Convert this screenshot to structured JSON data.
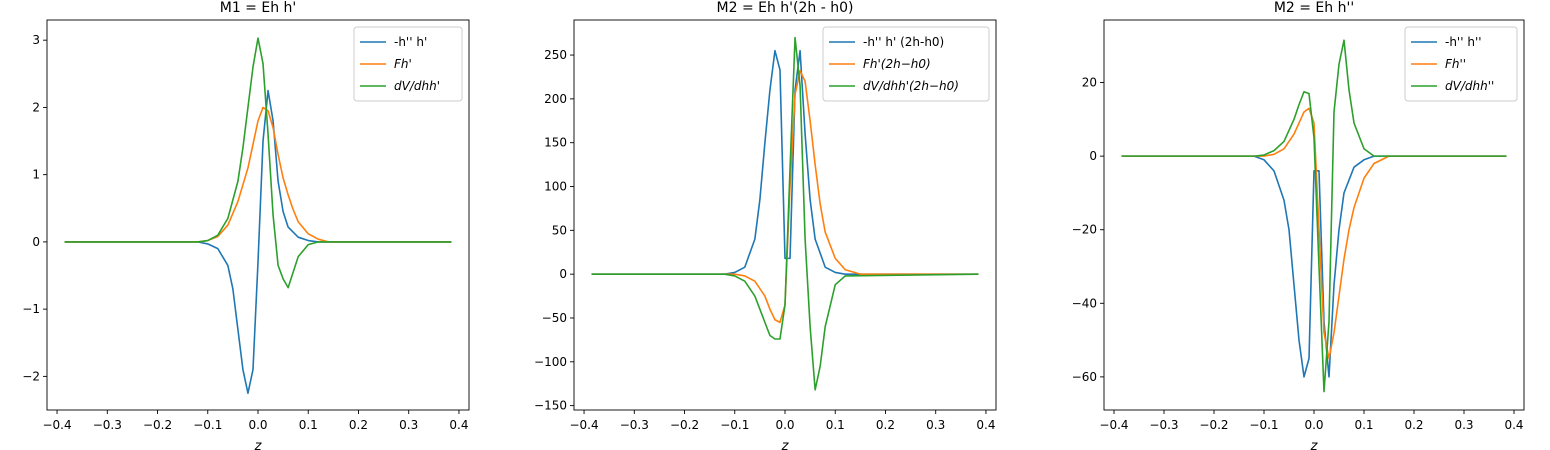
{
  "chart_data": [
    {
      "type": "line",
      "title": "M1 = Eh h'",
      "xlabel": "z",
      "ylabel": "",
      "xlim": [
        -0.42,
        0.42
      ],
      "ylim": [
        -2.5,
        3.3
      ],
      "xticks": [
        -0.4,
        -0.3,
        -0.2,
        -0.1,
        0.0,
        0.1,
        0.2,
        0.3,
        0.4
      ],
      "xtick_labels": [
        "−0.4",
        "−0.3",
        "−0.2",
        "−0.1",
        "0.0",
        "0.1",
        "0.2",
        "0.3",
        "0.4"
      ],
      "yticks": [
        -2,
        -1,
        0,
        1,
        2,
        3
      ],
      "ytick_labels": [
        "−2",
        "−1",
        "0",
        "1",
        "2",
        "3"
      ],
      "legend_position": "top-right",
      "grid": false,
      "series": [
        {
          "name": "-h'' h'",
          "color": "#1f77b4",
          "x": [
            -0.385,
            -0.12,
            -0.1,
            -0.08,
            -0.06,
            -0.05,
            -0.04,
            -0.03,
            -0.02,
            -0.01,
            0.0,
            0.01,
            0.02,
            0.03,
            0.04,
            0.05,
            0.06,
            0.08,
            0.1,
            0.12,
            0.385
          ],
          "y": [
            0,
            0,
            -0.03,
            -0.1,
            -0.35,
            -0.7,
            -1.3,
            -1.9,
            -2.25,
            -1.9,
            -0.3,
            1.5,
            2.25,
            1.8,
            0.9,
            0.45,
            0.22,
            0.07,
            0.02,
            0,
            0
          ]
        },
        {
          "name": "Fh'",
          "color": "#ff7f0e",
          "x": [
            -0.385,
            -0.12,
            -0.1,
            -0.08,
            -0.06,
            -0.04,
            -0.02,
            -0.01,
            0.0,
            0.01,
            0.02,
            0.03,
            0.04,
            0.05,
            0.06,
            0.07,
            0.08,
            0.1,
            0.12,
            0.14,
            0.385
          ],
          "y": [
            0,
            0,
            0.02,
            0.08,
            0.25,
            0.6,
            1.1,
            1.45,
            1.8,
            2.0,
            1.95,
            1.7,
            1.3,
            0.95,
            0.7,
            0.48,
            0.3,
            0.12,
            0.04,
            0,
            0
          ]
        },
        {
          "name": "dV/dhh'",
          "color": "#2ca02c",
          "x": [
            -0.385,
            -0.12,
            -0.1,
            -0.08,
            -0.06,
            -0.04,
            -0.03,
            -0.02,
            -0.01,
            0.0,
            0.01,
            0.02,
            0.03,
            0.04,
            0.05,
            0.06,
            0.07,
            0.08,
            0.1,
            0.12,
            0.385
          ],
          "y": [
            0,
            0,
            0.02,
            0.1,
            0.35,
            0.9,
            1.4,
            2.0,
            2.6,
            3.03,
            2.65,
            1.6,
            0.4,
            -0.35,
            -0.55,
            -0.68,
            -0.45,
            -0.22,
            -0.04,
            0,
            0
          ]
        }
      ]
    },
    {
      "type": "line",
      "title": "M2 = Eh h'(2h - h0)",
      "xlabel": "z",
      "ylabel": "",
      "xlim": [
        -0.42,
        0.42
      ],
      "ylim": [
        -155,
        290
      ],
      "xticks": [
        -0.4,
        -0.3,
        -0.2,
        -0.1,
        0.0,
        0.1,
        0.2,
        0.3,
        0.4
      ],
      "xtick_labels": [
        "−0.4",
        "−0.3",
        "−0.2",
        "−0.1",
        "0.0",
        "0.1",
        "0.2",
        "0.3",
        "0.4"
      ],
      "yticks": [
        -150,
        -100,
        -50,
        0,
        50,
        100,
        150,
        200,
        250
      ],
      "ytick_labels": [
        "−150",
        "−100",
        "−50",
        "0",
        "50",
        "100",
        "150",
        "200",
        "250"
      ],
      "legend_position": "top-right",
      "grid": false,
      "series": [
        {
          "name": "-h'' h' (2h-h0)",
          "color": "#1f77b4",
          "x": [
            -0.385,
            -0.12,
            -0.1,
            -0.08,
            -0.06,
            -0.05,
            -0.04,
            -0.03,
            -0.02,
            -0.01,
            0.0,
            0.01,
            0.02,
            0.03,
            0.04,
            0.05,
            0.06,
            0.08,
            0.1,
            0.12,
            0.385
          ],
          "y": [
            0,
            0,
            2,
            8,
            40,
            85,
            150,
            210,
            255,
            233,
            18,
            18,
            210,
            255,
            160,
            85,
            40,
            8,
            2,
            0,
            0
          ]
        },
        {
          "name": "Fh'(2h−h0)",
          "color": "#ff7f0e",
          "x": [
            -0.385,
            -0.1,
            -0.08,
            -0.06,
            -0.04,
            -0.03,
            -0.02,
            -0.01,
            0.0,
            0.01,
            0.02,
            0.03,
            0.04,
            0.05,
            0.06,
            0.07,
            0.08,
            0.1,
            0.12,
            0.15,
            0.385
          ],
          "y": [
            0,
            0,
            -2,
            -8,
            -25,
            -40,
            -52,
            -55,
            -35,
            100,
            205,
            232,
            220,
            175,
            125,
            80,
            48,
            18,
            5,
            0,
            0
          ]
        },
        {
          "name": "dV/dhh'(2h−h0)",
          "color": "#2ca02c",
          "x": [
            -0.385,
            -0.12,
            -0.1,
            -0.08,
            -0.06,
            -0.04,
            -0.03,
            -0.02,
            -0.01,
            0.0,
            0.01,
            0.02,
            0.03,
            0.04,
            0.05,
            0.06,
            0.07,
            0.08,
            0.1,
            0.12,
            0.385
          ],
          "y": [
            0,
            0,
            -2,
            -8,
            -25,
            -55,
            -70,
            -74,
            -74,
            -35,
            120,
            270,
            215,
            40,
            -60,
            -132,
            -105,
            -60,
            -12,
            -2,
            0
          ]
        }
      ]
    },
    {
      "type": "line",
      "title": "M2 = Eh h''",
      "xlabel": "z",
      "ylabel": "",
      "xlim": [
        -0.42,
        0.42
      ],
      "ylim": [
        -69,
        37
      ],
      "xticks": [
        -0.4,
        -0.3,
        -0.2,
        -0.1,
        0.0,
        0.1,
        0.2,
        0.3,
        0.4
      ],
      "xtick_labels": [
        "−0.4",
        "−0.3",
        "−0.2",
        "−0.1",
        "0.0",
        "0.1",
        "0.2",
        "0.3",
        "0.4"
      ],
      "yticks": [
        -60,
        -40,
        -20,
        0,
        20
      ],
      "ytick_labels": [
        "−60",
        "−40",
        "−20",
        "0",
        "20"
      ],
      "legend_position": "top-right",
      "grid": false,
      "series": [
        {
          "name": "-h'' h''",
          "color": "#1f77b4",
          "x": [
            -0.385,
            -0.12,
            -0.1,
            -0.08,
            -0.06,
            -0.05,
            -0.04,
            -0.03,
            -0.02,
            -0.01,
            0.0,
            0.01,
            0.02,
            0.03,
            0.04,
            0.05,
            0.06,
            0.08,
            0.1,
            0.12,
            0.385
          ],
          "y": [
            0,
            0,
            -1,
            -4,
            -12,
            -20,
            -35,
            -50,
            -60,
            -55,
            -4,
            -4,
            -45,
            -60,
            -35,
            -20,
            -10,
            -3,
            -1,
            0,
            0
          ]
        },
        {
          "name": "Fh''",
          "color": "#ff7f0e",
          "x": [
            -0.385,
            -0.1,
            -0.08,
            -0.06,
            -0.04,
            -0.03,
            -0.02,
            -0.01,
            0.0,
            0.01,
            0.02,
            0.03,
            0.04,
            0.05,
            0.06,
            0.07,
            0.08,
            0.1,
            0.12,
            0.15,
            0.385
          ],
          "y": [
            0,
            0,
            0.5,
            2,
            6,
            9,
            12,
            13,
            9,
            -20,
            -48,
            -55,
            -48,
            -38,
            -28,
            -20,
            -14,
            -6,
            -2,
            0,
            0
          ]
        },
        {
          "name": "dV/dhh''",
          "color": "#2ca02c",
          "x": [
            -0.385,
            -0.12,
            -0.1,
            -0.08,
            -0.06,
            -0.04,
            -0.03,
            -0.02,
            -0.01,
            0.0,
            0.01,
            0.02,
            0.03,
            0.04,
            0.05,
            0.06,
            0.07,
            0.08,
            0.1,
            0.12,
            0.385
          ],
          "y": [
            0,
            0,
            0.3,
            1.5,
            4,
            10,
            14,
            17.5,
            17,
            5,
            -30,
            -64,
            -45,
            12,
            25,
            31.5,
            18,
            9,
            2,
            0,
            0
          ]
        }
      ]
    }
  ]
}
